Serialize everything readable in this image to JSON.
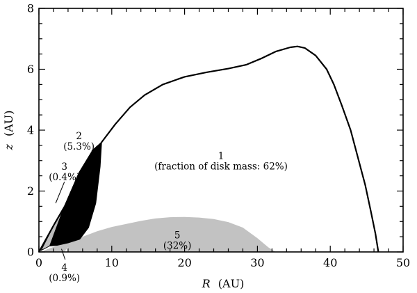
{
  "chart_data": {
    "type": "area",
    "title": "",
    "xlabel": "R",
    "xlabel_unit": "(AU)",
    "ylabel": "z",
    "ylabel_unit": "(AU)",
    "xlim": [
      0,
      50
    ],
    "ylim": [
      0,
      8
    ],
    "xticks": [
      0,
      10,
      20,
      30,
      40,
      50
    ],
    "yticks": [
      0,
      2,
      4,
      6,
      8
    ],
    "x_minor_step": 2,
    "y_minor_step": 0.5,
    "grid": false,
    "colors": {
      "region_1_outline": "#000000",
      "region_2_fill": "#000000",
      "region_3_fill": "#bdbdbd",
      "region_5_fill": "#c2c2c2",
      "region_4_fill": "#c2c2c2"
    },
    "regions": [
      {
        "id": "1",
        "name": "region-1-outline",
        "style": "outline",
        "label": "1",
        "sublabel": "(fraction of disk mass: 62%)",
        "label_at": [
          25.0,
          3.05
        ],
        "points": [
          [
            0,
            0
          ],
          [
            2.2,
            0.95
          ],
          [
            4.4,
            1.85
          ],
          [
            6.5,
            2.75
          ],
          [
            8.6,
            3.6
          ],
          [
            10.5,
            4.2
          ],
          [
            12.5,
            4.75
          ],
          [
            14.5,
            5.15
          ],
          [
            17,
            5.5
          ],
          [
            20,
            5.75
          ],
          [
            23,
            5.9
          ],
          [
            26,
            6.02
          ],
          [
            28.5,
            6.15
          ],
          [
            30.5,
            6.35
          ],
          [
            32.5,
            6.58
          ],
          [
            34.5,
            6.72
          ],
          [
            35.5,
            6.75
          ],
          [
            36.5,
            6.7
          ],
          [
            38,
            6.45
          ],
          [
            39.5,
            6.0
          ],
          [
            40.5,
            5.5
          ],
          [
            41.6,
            4.8
          ],
          [
            42.8,
            4.0
          ],
          [
            43.8,
            3.1
          ],
          [
            44.8,
            2.2
          ],
          [
            45.6,
            1.3
          ],
          [
            46.2,
            0.6
          ],
          [
            46.6,
            0
          ]
        ]
      },
      {
        "id": "2",
        "name": "region-2-fill",
        "style": "black",
        "label": "2",
        "sublabel": "(5.3%)",
        "label_at": [
          5.5,
          3.7
        ],
        "points": [
          [
            1.5,
            0.2
          ],
          [
            3.5,
            1.5
          ],
          [
            5.5,
            2.6
          ],
          [
            7.4,
            3.35
          ],
          [
            8.6,
            3.6
          ],
          [
            8.4,
            2.8
          ],
          [
            7.8,
            1.6
          ],
          [
            6.8,
            0.8
          ],
          [
            5.6,
            0.42
          ],
          [
            4.0,
            0.3
          ],
          [
            2.5,
            0.22
          ]
        ]
      },
      {
        "id": "3",
        "name": "region-3-fill",
        "style": "gray",
        "label": "3",
        "sublabel": "(0.4%)",
        "label_at": [
          3.5,
          2.7
        ],
        "points": [
          [
            0.3,
            0.05
          ],
          [
            2.2,
            0.95
          ],
          [
            4.4,
            1.85
          ],
          [
            6.5,
            2.75
          ],
          [
            8.6,
            3.6
          ],
          [
            7.4,
            3.35
          ],
          [
            5.5,
            2.6
          ],
          [
            3.5,
            1.5
          ],
          [
            1.5,
            0.2
          ]
        ]
      },
      {
        "id": "5",
        "name": "region-5-fill",
        "style": "gray",
        "label": "5",
        "sublabel": "(32%)",
        "label_at": [
          19,
          0.45
        ],
        "points": [
          [
            4.0,
            0.3
          ],
          [
            6,
            0.5
          ],
          [
            8,
            0.68
          ],
          [
            10,
            0.82
          ],
          [
            12,
            0.92
          ],
          [
            14,
            1.02
          ],
          [
            16,
            1.1
          ],
          [
            18,
            1.14
          ],
          [
            20,
            1.15
          ],
          [
            22,
            1.13
          ],
          [
            24,
            1.08
          ],
          [
            26,
            0.98
          ],
          [
            28,
            0.8
          ],
          [
            30,
            0.45
          ],
          [
            31.5,
            0.15
          ],
          [
            32.5,
            0
          ],
          [
            4.0,
            0
          ]
        ]
      },
      {
        "id": "4",
        "name": "region-4-fill",
        "style": "gray",
        "label": "4",
        "sublabel": "(0.9%)",
        "label_at": [
          3.5,
          -0.62
        ],
        "points": [
          [
            0.2,
            0
          ],
          [
            1.5,
            0.12
          ],
          [
            3.0,
            0.25
          ],
          [
            4.5,
            0.38
          ],
          [
            4.0,
            0.15
          ],
          [
            3.5,
            0
          ],
          [
            0.2,
            0
          ]
        ]
      }
    ],
    "leaders": [
      {
        "name": "leader-region-3",
        "from": [
          3.5,
          2.3
        ],
        "to": [
          2.3,
          1.6
        ]
      },
      {
        "name": "leader-region-4",
        "from": [
          3.6,
          -0.25
        ],
        "to": [
          3.1,
          0.1
        ]
      }
    ]
  }
}
